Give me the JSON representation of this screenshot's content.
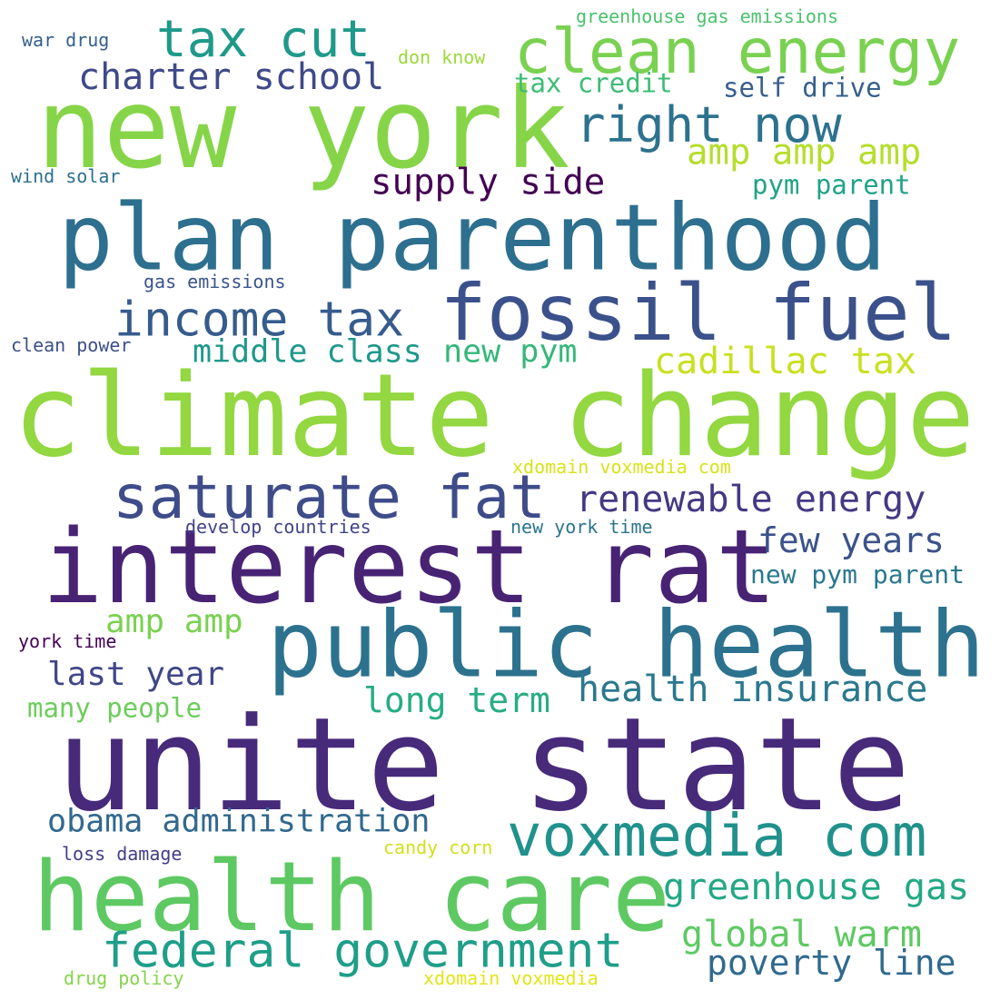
{
  "words": [
    {
      "text": "climate change",
      "color": "#93d741"
    },
    {
      "text": "unite state",
      "color": "#472a7a"
    },
    {
      "text": "plan parenthood",
      "color": "#2d6f8e"
    },
    {
      "text": "new york",
      "color": "#86d549"
    },
    {
      "text": "interest rat",
      "color": "#482374"
    },
    {
      "text": "public health",
      "color": "#2c728e"
    },
    {
      "text": "health care",
      "color": "#5ec962"
    },
    {
      "text": "fossil fuel",
      "color": "#3b518b"
    },
    {
      "text": "saturate fat",
      "color": "#3e4c8a"
    },
    {
      "text": "clean energy",
      "color": "#7ad151"
    },
    {
      "text": "voxmedia com",
      "color": "#21918c"
    },
    {
      "text": "tax cut",
      "color": "#1f998a"
    },
    {
      "text": "federal government",
      "color": "#1f9e89"
    },
    {
      "text": "income tax",
      "color": "#365c8d"
    },
    {
      "text": "right now",
      "color": "#2c728e"
    },
    {
      "text": "renewable energy",
      "color": "#443983"
    },
    {
      "text": "charter school",
      "color": "#3e4989"
    },
    {
      "text": "health insurance",
      "color": "#2a788e"
    },
    {
      "text": "obama administration",
      "color": "#31688e"
    },
    {
      "text": "greenhouse gas",
      "color": "#22a884"
    },
    {
      "text": "cadillac tax",
      "color": "#c8e020"
    },
    {
      "text": "amp amp amp",
      "color": "#b5de2b"
    },
    {
      "text": "supply side",
      "color": "#440154"
    },
    {
      "text": "middle class",
      "color": "#1f988b"
    },
    {
      "text": "new pym",
      "color": "#35b779"
    },
    {
      "text": "global warm",
      "color": "#5ec962"
    },
    {
      "text": "poverty line",
      "color": "#306a8e"
    },
    {
      "text": "few years",
      "color": "#3b528b"
    },
    {
      "text": "long term",
      "color": "#27ad81"
    },
    {
      "text": "last year",
      "color": "#3f4788"
    },
    {
      "text": "amp amp",
      "color": "#7ad151"
    },
    {
      "text": "new pym parent",
      "color": "#2a788e"
    },
    {
      "text": "tax credit",
      "color": "#3dbc74"
    },
    {
      "text": "self drive",
      "color": "#355f8d"
    },
    {
      "text": "pym parent",
      "color": "#20a386"
    },
    {
      "text": "many people",
      "color": "#6ccd5a"
    },
    {
      "text": "greenhouse gas emissions",
      "color": "#4ac16d"
    },
    {
      "text": "xdomain voxmedia com",
      "color": "#d8e219"
    },
    {
      "text": "develop countries",
      "color": "#414487"
    },
    {
      "text": "new york time",
      "color": "#2b748e"
    },
    {
      "text": "gas emissions",
      "color": "#3a548c"
    },
    {
      "text": "clean power",
      "color": "#3c4f8a"
    },
    {
      "text": "wind solar",
      "color": "#2d708e"
    },
    {
      "text": "war drug",
      "color": "#34618d"
    },
    {
      "text": "don know",
      "color": "#9bd93c"
    },
    {
      "text": "york time",
      "color": "#440154"
    },
    {
      "text": "loss damage",
      "color": "#423f85"
    },
    {
      "text": "candy corn",
      "color": "#d0e11c"
    },
    {
      "text": "drug policy",
      "color": "#84d44b"
    },
    {
      "text": "xdomain voxmedia",
      "color": "#e2e418"
    }
  ]
}
